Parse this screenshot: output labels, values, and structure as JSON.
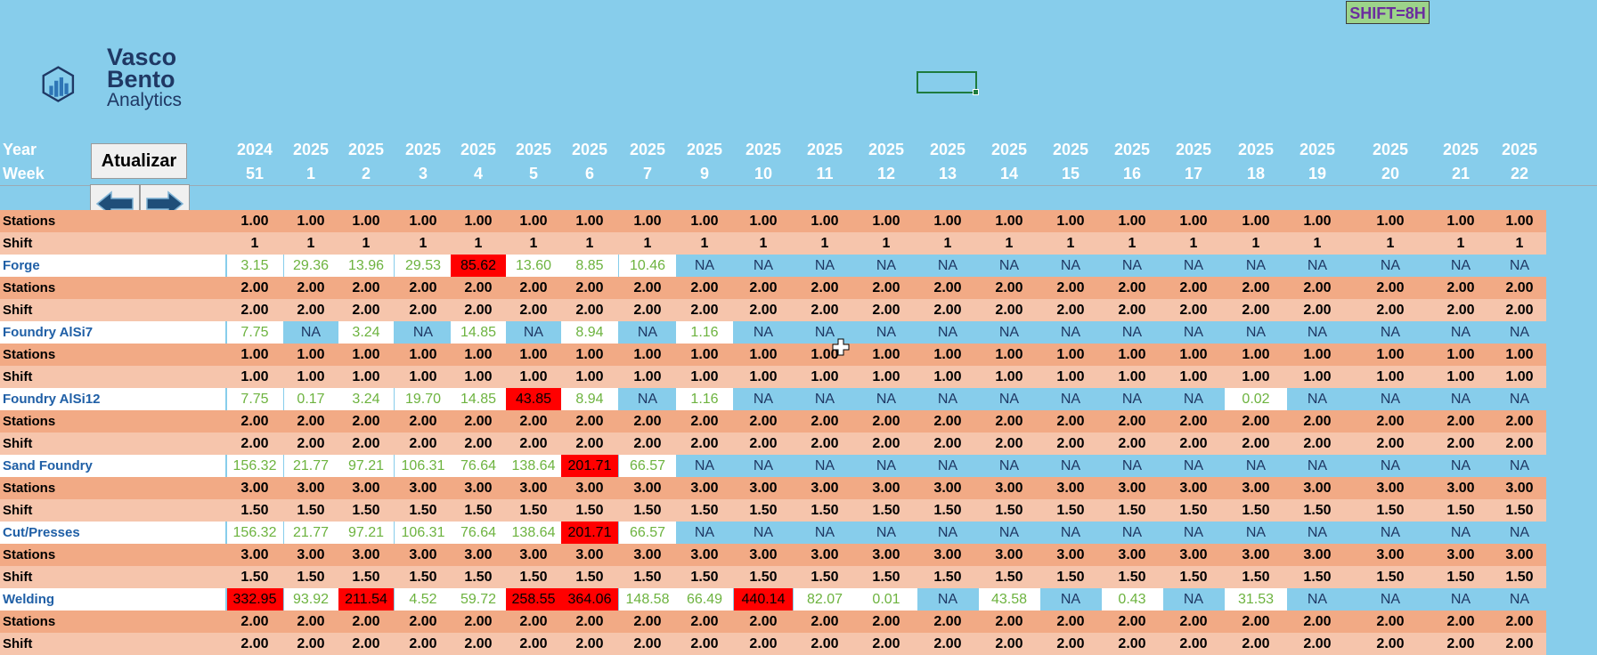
{
  "badge": {
    "shift": "SHIFT=8H"
  },
  "logo": {
    "line1": "Vasco",
    "line2": "Bento",
    "line3": "Analytics",
    "icon": "bar-chart-hexagon-icon"
  },
  "header": {
    "year_label": "Year",
    "week_label": "Week",
    "years": [
      "2024",
      "2025",
      "2025",
      "2025",
      "2025",
      "2025",
      "2025",
      "2025",
      "2025",
      "2025",
      "2025",
      "2025",
      "2025",
      "2025",
      "2025",
      "2025",
      "2025",
      "2025",
      "2025",
      "2025",
      "2025",
      "2025"
    ],
    "weeks": [
      "51",
      "1",
      "2",
      "3",
      "4",
      "5",
      "6",
      "7",
      "9",
      "10",
      "11",
      "12",
      "13",
      "14",
      "15",
      "16",
      "17",
      "18",
      "19",
      "20",
      "21",
      "22"
    ]
  },
  "buttons": {
    "refresh": "Atualizar",
    "prev_icon": "arrow-left-icon",
    "next_icon": "arrow-right-icon"
  },
  "colors": {
    "background": "#87CDEB",
    "stations_row": "#F2AA85",
    "shift_row": "#F6C5AC",
    "alert": "#FF0000",
    "ok_value": "#6DB33F"
  },
  "rows": [
    {
      "type": "stations",
      "label": "Stations",
      "cells": [
        "1.00",
        "1.00",
        "1.00",
        "1.00",
        "1.00",
        "1.00",
        "1.00",
        "1.00",
        "1.00",
        "1.00",
        "1.00",
        "1.00",
        "1.00",
        "1.00",
        "1.00",
        "1.00",
        "1.00",
        "1.00",
        "1.00",
        "1.00",
        "1.00",
        "1.00"
      ]
    },
    {
      "type": "shift",
      "label": "Shift",
      "cells": [
        "1",
        "1",
        "1",
        "1",
        "1",
        "1",
        "1",
        "1",
        "1",
        "1",
        "1",
        "1",
        "1",
        "1",
        "1",
        "1",
        "1",
        "1",
        "1",
        "1",
        "1",
        "1"
      ]
    },
    {
      "type": "proc",
      "label": "Forge",
      "cells": [
        "3.15",
        "29.36",
        "13.96",
        "29.53",
        "85.62",
        "13.60",
        "8.85",
        "10.46",
        "NA",
        "NA",
        "NA",
        "NA",
        "NA",
        "NA",
        "NA",
        "NA",
        "NA",
        "NA",
        "NA",
        "NA",
        "NA",
        "NA"
      ],
      "alerts": [
        4
      ]
    },
    {
      "type": "stations",
      "label": "Stations",
      "cells": [
        "2.00",
        "2.00",
        "2.00",
        "2.00",
        "2.00",
        "2.00",
        "2.00",
        "2.00",
        "2.00",
        "2.00",
        "2.00",
        "2.00",
        "2.00",
        "2.00",
        "2.00",
        "2.00",
        "2.00",
        "2.00",
        "2.00",
        "2.00",
        "2.00",
        "2.00"
      ]
    },
    {
      "type": "shift",
      "label": "Shift",
      "cells": [
        "2.00",
        "2.00",
        "2.00",
        "2.00",
        "2.00",
        "2.00",
        "2.00",
        "2.00",
        "2.00",
        "2.00",
        "2.00",
        "2.00",
        "2.00",
        "2.00",
        "2.00",
        "2.00",
        "2.00",
        "2.00",
        "2.00",
        "2.00",
        "2.00",
        "2.00"
      ]
    },
    {
      "type": "proc",
      "label": "Foundry AlSi7",
      "cells": [
        "7.75",
        "NA",
        "3.24",
        "NA",
        "14.85",
        "NA",
        "8.94",
        "NA",
        "1.16",
        "NA",
        "NA",
        "NA",
        "NA",
        "NA",
        "NA",
        "NA",
        "NA",
        "NA",
        "NA",
        "NA",
        "NA",
        "NA"
      ],
      "alerts": []
    },
    {
      "type": "stations",
      "label": "Stations",
      "cells": [
        "1.00",
        "1.00",
        "1.00",
        "1.00",
        "1.00",
        "1.00",
        "1.00",
        "1.00",
        "1.00",
        "1.00",
        "1.00",
        "1.00",
        "1.00",
        "1.00",
        "1.00",
        "1.00",
        "1.00",
        "1.00",
        "1.00",
        "1.00",
        "1.00",
        "1.00"
      ]
    },
    {
      "type": "shift",
      "label": "Shift",
      "cells": [
        "1.00",
        "1.00",
        "1.00",
        "1.00",
        "1.00",
        "1.00",
        "1.00",
        "1.00",
        "1.00",
        "1.00",
        "1.00",
        "1.00",
        "1.00",
        "1.00",
        "1.00",
        "1.00",
        "1.00",
        "1.00",
        "1.00",
        "1.00",
        "1.00",
        "1.00"
      ]
    },
    {
      "type": "proc",
      "label": "Foundry AlSi12",
      "cells": [
        "7.75",
        "0.17",
        "3.24",
        "19.70",
        "14.85",
        "43.85",
        "8.94",
        "NA",
        "1.16",
        "NA",
        "NA",
        "NA",
        "NA",
        "NA",
        "NA",
        "NA",
        "NA",
        "0.02",
        "NA",
        "NA",
        "NA",
        "NA"
      ],
      "alerts": [
        5
      ]
    },
    {
      "type": "stations",
      "label": "Stations",
      "cells": [
        "2.00",
        "2.00",
        "2.00",
        "2.00",
        "2.00",
        "2.00",
        "2.00",
        "2.00",
        "2.00",
        "2.00",
        "2.00",
        "2.00",
        "2.00",
        "2.00",
        "2.00",
        "2.00",
        "2.00",
        "2.00",
        "2.00",
        "2.00",
        "2.00",
        "2.00"
      ]
    },
    {
      "type": "shift",
      "label": "Shift",
      "cells": [
        "2.00",
        "2.00",
        "2.00",
        "2.00",
        "2.00",
        "2.00",
        "2.00",
        "2.00",
        "2.00",
        "2.00",
        "2.00",
        "2.00",
        "2.00",
        "2.00",
        "2.00",
        "2.00",
        "2.00",
        "2.00",
        "2.00",
        "2.00",
        "2.00",
        "2.00"
      ]
    },
    {
      "type": "proc",
      "label": "Sand Foundry",
      "cells": [
        "156.32",
        "21.77",
        "97.21",
        "106.31",
        "76.64",
        "138.64",
        "201.71",
        "66.57",
        "NA",
        "NA",
        "NA",
        "NA",
        "NA",
        "NA",
        "NA",
        "NA",
        "NA",
        "NA",
        "NA",
        "NA",
        "NA",
        "NA"
      ],
      "alerts": [
        6
      ]
    },
    {
      "type": "stations",
      "label": "Stations",
      "cells": [
        "3.00",
        "3.00",
        "3.00",
        "3.00",
        "3.00",
        "3.00",
        "3.00",
        "3.00",
        "3.00",
        "3.00",
        "3.00",
        "3.00",
        "3.00",
        "3.00",
        "3.00",
        "3.00",
        "3.00",
        "3.00",
        "3.00",
        "3.00",
        "3.00",
        "3.00"
      ]
    },
    {
      "type": "shift",
      "label": "Shift",
      "cells": [
        "1.50",
        "1.50",
        "1.50",
        "1.50",
        "1.50",
        "1.50",
        "1.50",
        "1.50",
        "1.50",
        "1.50",
        "1.50",
        "1.50",
        "1.50",
        "1.50",
        "1.50",
        "1.50",
        "1.50",
        "1.50",
        "1.50",
        "1.50",
        "1.50",
        "1.50"
      ]
    },
    {
      "type": "proc",
      "label": "Cut/Presses",
      "cells": [
        "156.32",
        "21.77",
        "97.21",
        "106.31",
        "76.64",
        "138.64",
        "201.71",
        "66.57",
        "NA",
        "NA",
        "NA",
        "NA",
        "NA",
        "NA",
        "NA",
        "NA",
        "NA",
        "NA",
        "NA",
        "NA",
        "NA",
        "NA"
      ],
      "alerts": [
        6
      ]
    },
    {
      "type": "stations",
      "label": "Stations",
      "cells": [
        "3.00",
        "3.00",
        "3.00",
        "3.00",
        "3.00",
        "3.00",
        "3.00",
        "3.00",
        "3.00",
        "3.00",
        "3.00",
        "3.00",
        "3.00",
        "3.00",
        "3.00",
        "3.00",
        "3.00",
        "3.00",
        "3.00",
        "3.00",
        "3.00",
        "3.00"
      ]
    },
    {
      "type": "shift",
      "label": "Shift",
      "cells": [
        "1.50",
        "1.50",
        "1.50",
        "1.50",
        "1.50",
        "1.50",
        "1.50",
        "1.50",
        "1.50",
        "1.50",
        "1.50",
        "1.50",
        "1.50",
        "1.50",
        "1.50",
        "1.50",
        "1.50",
        "1.50",
        "1.50",
        "1.50",
        "1.50",
        "1.50"
      ]
    },
    {
      "type": "proc",
      "label": "Welding",
      "cells": [
        "332.95",
        "93.92",
        "211.54",
        "4.52",
        "59.72",
        "258.55",
        "364.06",
        "148.58",
        "66.49",
        "440.14",
        "82.07",
        "0.01",
        "NA",
        "43.58",
        "NA",
        "0.43",
        "NA",
        "31.53",
        "NA",
        "NA",
        "NA",
        "NA"
      ],
      "alerts": [
        0,
        2,
        5,
        6,
        9
      ]
    },
    {
      "type": "stations",
      "label": "Stations",
      "cells": [
        "2.00",
        "2.00",
        "2.00",
        "2.00",
        "2.00",
        "2.00",
        "2.00",
        "2.00",
        "2.00",
        "2.00",
        "2.00",
        "2.00",
        "2.00",
        "2.00",
        "2.00",
        "2.00",
        "2.00",
        "2.00",
        "2.00",
        "2.00",
        "2.00",
        "2.00"
      ]
    },
    {
      "type": "shift",
      "label": "Shift",
      "cells": [
        "2.00",
        "2.00",
        "2.00",
        "2.00",
        "2.00",
        "2.00",
        "2.00",
        "2.00",
        "2.00",
        "2.00",
        "2.00",
        "2.00",
        "2.00",
        "2.00",
        "2.00",
        "2.00",
        "2.00",
        "2.00",
        "2.00",
        "2.00",
        "2.00",
        "2.00"
      ]
    }
  ]
}
